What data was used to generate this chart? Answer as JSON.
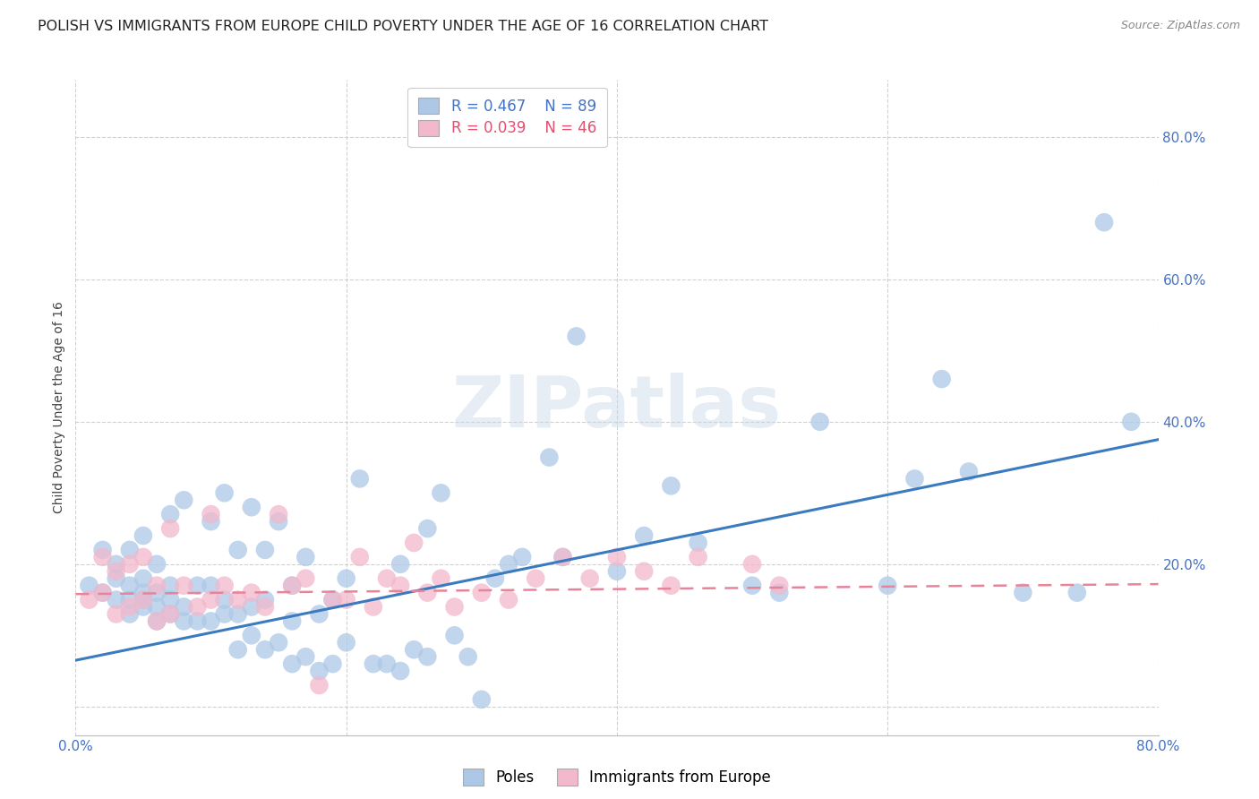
{
  "title": "POLISH VS IMMIGRANTS FROM EUROPE CHILD POVERTY UNDER THE AGE OF 16 CORRELATION CHART",
  "source": "Source: ZipAtlas.com",
  "ylabel": "Child Poverty Under the Age of 16",
  "xlim": [
    0.0,
    0.8
  ],
  "ylim": [
    -0.04,
    0.88
  ],
  "xticks": [
    0.0,
    0.2,
    0.4,
    0.6,
    0.8
  ],
  "yticks": [
    0.0,
    0.2,
    0.4,
    0.6,
    0.8
  ],
  "xtick_labels": [
    "0.0%",
    "",
    "",
    "",
    "80.0%"
  ],
  "ytick_labels_right": [
    "",
    "20.0%",
    "40.0%",
    "60.0%",
    "80.0%"
  ],
  "series1_label": "Poles",
  "series2_label": "Immigrants from Europe",
  "series1_R": "0.467",
  "series1_N": "89",
  "series2_R": "0.039",
  "series2_N": "46",
  "series1_color": "#adc8e6",
  "series2_color": "#f2b8cb",
  "series1_line_color": "#3a7abf",
  "series2_line_color": "#e8849a",
  "legend_R_color1": "#4472c4",
  "legend_R_color2": "#e05070",
  "background_color": "#ffffff",
  "watermark": "ZIPatlas",
  "title_fontsize": 11.5,
  "axis_label_fontsize": 10,
  "tick_fontsize": 11,
  "series1_line_start_x": 0.0,
  "series1_line_start_y": 0.065,
  "series1_line_end_x": 0.8,
  "series1_line_end_y": 0.375,
  "series2_line_start_x": 0.0,
  "series2_line_start_y": 0.158,
  "series2_line_end_x": 0.8,
  "series2_line_end_y": 0.172,
  "poles_x": [
    0.01,
    0.02,
    0.02,
    0.03,
    0.03,
    0.03,
    0.04,
    0.04,
    0.04,
    0.04,
    0.05,
    0.05,
    0.05,
    0.05,
    0.05,
    0.06,
    0.06,
    0.06,
    0.06,
    0.07,
    0.07,
    0.07,
    0.07,
    0.08,
    0.08,
    0.08,
    0.09,
    0.09,
    0.1,
    0.1,
    0.1,
    0.11,
    0.11,
    0.11,
    0.12,
    0.12,
    0.12,
    0.13,
    0.13,
    0.13,
    0.14,
    0.14,
    0.14,
    0.15,
    0.15,
    0.16,
    0.16,
    0.16,
    0.17,
    0.17,
    0.18,
    0.18,
    0.19,
    0.19,
    0.2,
    0.2,
    0.21,
    0.22,
    0.23,
    0.24,
    0.24,
    0.25,
    0.26,
    0.26,
    0.27,
    0.28,
    0.29,
    0.3,
    0.31,
    0.32,
    0.33,
    0.35,
    0.36,
    0.37,
    0.4,
    0.42,
    0.44,
    0.46,
    0.5,
    0.52,
    0.55,
    0.6,
    0.62,
    0.64,
    0.66,
    0.7,
    0.74,
    0.76,
    0.78
  ],
  "poles_y": [
    0.17,
    0.16,
    0.22,
    0.15,
    0.18,
    0.2,
    0.13,
    0.15,
    0.17,
    0.22,
    0.14,
    0.15,
    0.16,
    0.18,
    0.24,
    0.12,
    0.14,
    0.16,
    0.2,
    0.13,
    0.15,
    0.17,
    0.27,
    0.12,
    0.14,
    0.29,
    0.12,
    0.17,
    0.12,
    0.17,
    0.26,
    0.13,
    0.15,
    0.3,
    0.08,
    0.13,
    0.22,
    0.1,
    0.14,
    0.28,
    0.08,
    0.15,
    0.22,
    0.09,
    0.26,
    0.06,
    0.12,
    0.17,
    0.07,
    0.21,
    0.05,
    0.13,
    0.06,
    0.15,
    0.09,
    0.18,
    0.32,
    0.06,
    0.06,
    0.05,
    0.2,
    0.08,
    0.07,
    0.25,
    0.3,
    0.1,
    0.07,
    0.01,
    0.18,
    0.2,
    0.21,
    0.35,
    0.21,
    0.52,
    0.19,
    0.24,
    0.31,
    0.23,
    0.17,
    0.16,
    0.4,
    0.17,
    0.32,
    0.46,
    0.33,
    0.16,
    0.16,
    0.68,
    0.4
  ],
  "immigrants_x": [
    0.01,
    0.02,
    0.02,
    0.03,
    0.03,
    0.04,
    0.04,
    0.05,
    0.05,
    0.06,
    0.06,
    0.07,
    0.07,
    0.08,
    0.09,
    0.1,
    0.1,
    0.11,
    0.12,
    0.13,
    0.14,
    0.15,
    0.16,
    0.17,
    0.18,
    0.19,
    0.2,
    0.21,
    0.22,
    0.23,
    0.24,
    0.25,
    0.26,
    0.27,
    0.28,
    0.3,
    0.32,
    0.34,
    0.36,
    0.38,
    0.4,
    0.42,
    0.44,
    0.46,
    0.5,
    0.52
  ],
  "immigrants_y": [
    0.15,
    0.16,
    0.21,
    0.13,
    0.19,
    0.14,
    0.2,
    0.15,
    0.21,
    0.12,
    0.17,
    0.13,
    0.25,
    0.17,
    0.14,
    0.15,
    0.27,
    0.17,
    0.15,
    0.16,
    0.14,
    0.27,
    0.17,
    0.18,
    0.03,
    0.15,
    0.15,
    0.21,
    0.14,
    0.18,
    0.17,
    0.23,
    0.16,
    0.18,
    0.14,
    0.16,
    0.15,
    0.18,
    0.21,
    0.18,
    0.21,
    0.19,
    0.17,
    0.21,
    0.2,
    0.17
  ]
}
